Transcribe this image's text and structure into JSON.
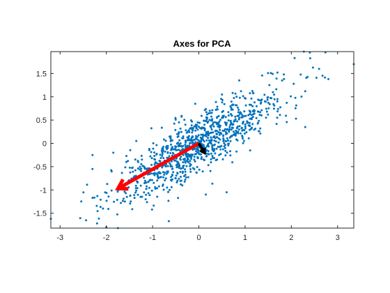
{
  "chart_data": {
    "type": "scatter",
    "title": "Axes for PCA",
    "xlabel": "",
    "ylabel": "",
    "xlim": [
      -3.2,
      3.35
    ],
    "ylim": [
      -1.82,
      1.97
    ],
    "xticks": [
      -3,
      -2,
      -1,
      0,
      1,
      2,
      3
    ],
    "yticks": [
      -1.5,
      -1,
      -0.5,
      0,
      0.5,
      1,
      1.5
    ],
    "xtick_labels": [
      "-3",
      "-2",
      "-1",
      "0",
      "1",
      "2",
      "3"
    ],
    "ytick_labels": [
      "-1.5",
      "-1",
      "-0.5",
      "0",
      "0.5",
      "1",
      "1.5"
    ],
    "grid": false,
    "box": true,
    "scatter": {
      "color": "#0072BD",
      "count": 1000,
      "generator": "bivariate normal, principal axis along (0.85, 0.53)",
      "principal_sd": 1.04,
      "minor_sd": 0.27,
      "outliers": [
        {
          "x": 2.27,
          "y": 1.97
        },
        {
          "x": 2.4,
          "y": 1.95
        },
        {
          "x": 2.07,
          "y": 1.83
        },
        {
          "x": 2.6,
          "y": 1.6
        },
        {
          "x": 3.35,
          "y": 1.7
        },
        {
          "x": 2.8,
          "y": 1.38
        },
        {
          "x": 1.7,
          "y": 1.52
        },
        {
          "x": 2.3,
          "y": 1.12
        },
        {
          "x": 2.1,
          "y": 0.53
        },
        {
          "x": 2.3,
          "y": 0.35
        },
        {
          "x": -3.2,
          "y": -1.62
        },
        {
          "x": -2.2,
          "y": -1.72
        },
        {
          "x": -2.0,
          "y": -1.8
        },
        {
          "x": -1.75,
          "y": -1.82
        },
        {
          "x": -0.65,
          "y": -1.67
        },
        {
          "x": -2.3,
          "y": -0.25
        },
        {
          "x": -2.3,
          "y": -0.55
        },
        {
          "x": -1.85,
          "y": -0.2
        },
        {
          "x": -2.3,
          "y": -1.17
        },
        {
          "x": -1.6,
          "y": -1.25
        },
        {
          "x": -1.15,
          "y": -1.2
        },
        {
          "x": 0.15,
          "y": -1.1
        },
        {
          "x": 0.6,
          "y": -1.05
        },
        {
          "x": 1.9,
          "y": 0.87
        },
        {
          "x": 1.7,
          "y": 0.95
        },
        {
          "x": 2.05,
          "y": 1.28
        },
        {
          "x": 1.8,
          "y": 1.35
        }
      ]
    },
    "arrows": [
      {
        "name": "first principal component",
        "color": "#ff0000",
        "from": [
          0,
          0
        ],
        "to": [
          -1.75,
          -0.97
        ]
      },
      {
        "name": "second principal component",
        "color": "#000000",
        "from": [
          0,
          0
        ],
        "to": [
          0.12,
          -0.2
        ]
      }
    ]
  }
}
